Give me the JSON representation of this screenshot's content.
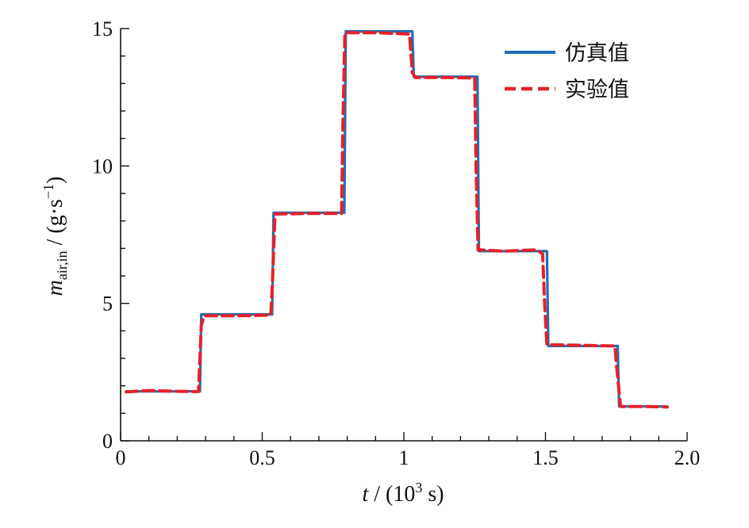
{
  "chart_data": {
    "type": "line",
    "xlabel": {
      "var": "t",
      "rest": " / (10",
      "sup": "3",
      "end": " s)"
    },
    "ylabel": {
      "var": "m",
      "sub": "air,in",
      "rest": " / (g·s",
      "sup": "−1",
      "end": ")"
    },
    "xlim": [
      0,
      2.0
    ],
    "ylim": [
      0,
      15
    ],
    "xticks": [
      0,
      0.5,
      1,
      1.5,
      2.0
    ],
    "xtick_labels": [
      "0",
      "0.5",
      "1",
      "1.5",
      "2.0"
    ],
    "yticks": [
      0,
      5,
      10,
      15
    ],
    "ytick_labels": [
      "0",
      "5",
      "10",
      "15"
    ],
    "grid": false,
    "legend_position": "top-right",
    "series": [
      {
        "name": "仿真值",
        "color": "#1f6fb5",
        "style": "solid",
        "points": [
          [
            0.02,
            1.8
          ],
          [
            0.28,
            1.8
          ],
          [
            0.285,
            4.6
          ],
          [
            0.535,
            4.6
          ],
          [
            0.54,
            8.3
          ],
          [
            0.79,
            8.3
          ],
          [
            0.795,
            14.9
          ],
          [
            1.03,
            14.9
          ],
          [
            1.035,
            13.25
          ],
          [
            1.26,
            13.25
          ],
          [
            1.265,
            6.9
          ],
          [
            1.505,
            6.9
          ],
          [
            1.51,
            3.45
          ],
          [
            1.755,
            3.45
          ],
          [
            1.76,
            1.25
          ],
          [
            1.93,
            1.25
          ]
        ]
      },
      {
        "name": "实验值",
        "color": "#e8202a",
        "style": "dashed",
        "points": [
          [
            0.02,
            1.78
          ],
          [
            0.1,
            1.83
          ],
          [
            0.2,
            1.8
          ],
          [
            0.275,
            1.79
          ],
          [
            0.285,
            4.2
          ],
          [
            0.295,
            4.55
          ],
          [
            0.4,
            4.55
          ],
          [
            0.53,
            4.57
          ],
          [
            0.535,
            5.5
          ],
          [
            0.545,
            8.25
          ],
          [
            0.65,
            8.27
          ],
          [
            0.78,
            8.27
          ],
          [
            0.785,
            11.5
          ],
          [
            0.792,
            14.85
          ],
          [
            0.9,
            14.85
          ],
          [
            1.02,
            14.8
          ],
          [
            1.03,
            13.4
          ],
          [
            1.04,
            13.22
          ],
          [
            1.15,
            13.22
          ],
          [
            1.25,
            13.2
          ],
          [
            1.255,
            10.0
          ],
          [
            1.262,
            6.95
          ],
          [
            1.35,
            6.9
          ],
          [
            1.47,
            6.95
          ],
          [
            1.49,
            6.8
          ],
          [
            1.497,
            5.0
          ],
          [
            1.505,
            3.5
          ],
          [
            1.6,
            3.48
          ],
          [
            1.745,
            3.45
          ],
          [
            1.752,
            2.6
          ],
          [
            1.765,
            1.25
          ],
          [
            1.85,
            1.25
          ],
          [
            1.93,
            1.23
          ]
        ]
      }
    ]
  }
}
